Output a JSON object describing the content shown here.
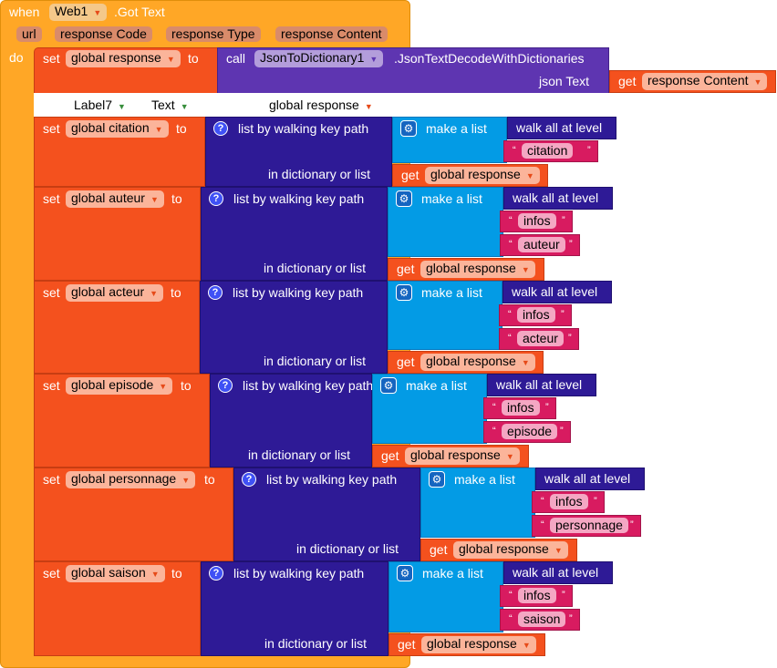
{
  "event": {
    "when": "when",
    "component": "Web1",
    "event": ".Got Text",
    "params": [
      "url",
      "response Code",
      "response Type",
      "response Content"
    ],
    "do": "do"
  },
  "first": {
    "set": "set",
    "var": "global response",
    "to": "to",
    "call": "call",
    "component": "JsonToDictionary1",
    "method": ".JsonTextDecodeWithDictionaries",
    "arg": "json Text",
    "get": "get",
    "get_var": "response Content"
  },
  "label_row": {
    "component": "Label7",
    "property": "Text",
    "value": "global response"
  },
  "labels": {
    "set": "set",
    "to": "to",
    "path": "list by walking key path",
    "make": "make a list",
    "walk": "walk all at level",
    "dict": "in dictionary or list",
    "get": "get",
    "get_var": "global response",
    "q": "?",
    "gear": "⚙"
  },
  "blocks": [
    {
      "var": "global citation",
      "keys": [
        "citation"
      ]
    },
    {
      "var": "global auteur",
      "keys": [
        "infos",
        "auteur"
      ]
    },
    {
      "var": "global acteur",
      "keys": [
        "infos",
        "acteur"
      ]
    },
    {
      "var": "global episode",
      "keys": [
        "infos",
        "episode"
      ]
    },
    {
      "var": "global personnage",
      "keys": [
        "infos",
        "personnage"
      ]
    },
    {
      "var": "global saison",
      "keys": [
        "infos",
        "saison"
      ]
    }
  ]
}
